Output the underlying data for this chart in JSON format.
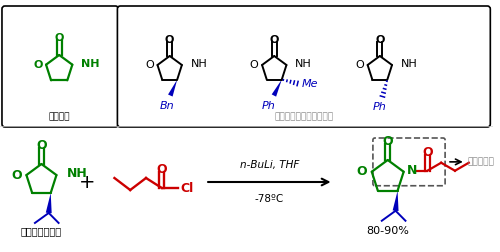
{
  "bg_color": "#ffffff",
  "top_left_label": "噌唑烷酮",
  "top_right_label": "可购常用的噌唑烷酮试剂",
  "bottom_left_label": "简单的酰化反应",
  "reaction_label1": "n-BuLi, THF",
  "reaction_label2": "-78ºC",
  "yield_label": "80-90%",
  "annotation": "酰亚胺结构",
  "green": "#008000",
  "red": "#cc0000",
  "blue": "#0000bb",
  "black": "#000000",
  "gray": "#888888"
}
